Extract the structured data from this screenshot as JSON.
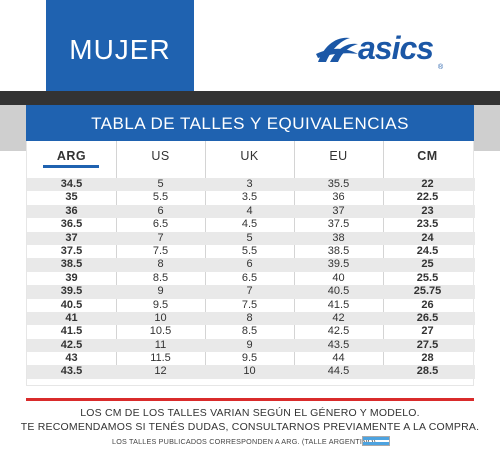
{
  "header": {
    "title": "MUJER",
    "brand": "asics",
    "brand_mark": "®"
  },
  "table": {
    "title": "TABLA DE TALLES Y EQUIVALENCIAS",
    "columns": [
      "ARG",
      "US",
      "UK",
      "EU",
      "CM"
    ],
    "rows": [
      [
        "34.5",
        "5",
        "3",
        "35.5",
        "22"
      ],
      [
        "35",
        "5.5",
        "3.5",
        "36",
        "22.5"
      ],
      [
        "36",
        "6",
        "4",
        "37",
        "23"
      ],
      [
        "36.5",
        "6.5",
        "4.5",
        "37.5",
        "23.5"
      ],
      [
        "37",
        "7",
        "5",
        "38",
        "24"
      ],
      [
        "37.5",
        "7.5",
        "5.5",
        "38.5",
        "24.5"
      ],
      [
        "38.5",
        "8",
        "6",
        "39.5",
        "25"
      ],
      [
        "39",
        "8.5",
        "6.5",
        "40",
        "25.5"
      ],
      [
        "39.5",
        "9",
        "7",
        "40.5",
        "25.75"
      ],
      [
        "40.5",
        "9.5",
        "7.5",
        "41.5",
        "26"
      ],
      [
        "41",
        "10",
        "8",
        "42",
        "26.5"
      ],
      [
        "41.5",
        "10.5",
        "8.5",
        "42.5",
        "27"
      ],
      [
        "42.5",
        "11",
        "9",
        "43.5",
        "27.5"
      ],
      [
        "43",
        "11.5",
        "9.5",
        "44",
        "28"
      ],
      [
        "43.5",
        "12",
        "10",
        "44.5",
        "28.5"
      ]
    ]
  },
  "notes": {
    "line1": "LOS CM DE LOS TALLES VARIAN SEGÚN EL GÉNERO Y MODELO.",
    "line2": "TE RECOMENDAMOS SI TENÉS DUDAS, CONSULTARNOS PREVIAMENTE A LA COMPRA.",
    "footnote": "LOS TALLES PUBLICADOS CORRESPONDEN A ARG. (TALLE ARGENTINO)"
  },
  "colors": {
    "brand_blue": "#1f62b0",
    "accent_red": "#d92b2b",
    "flag_blue": "#4da3e0"
  }
}
